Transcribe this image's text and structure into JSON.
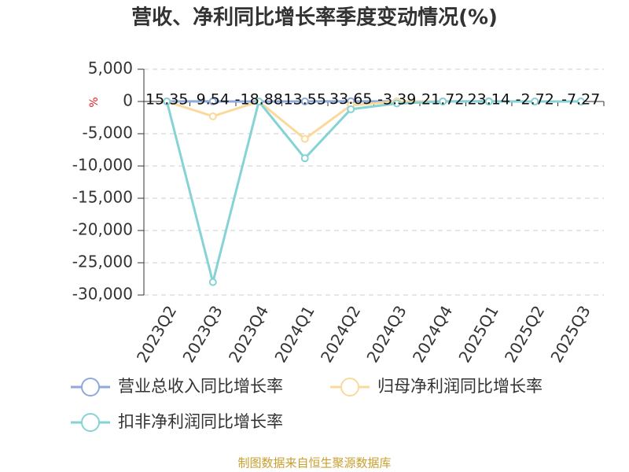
{
  "chart_data": {
    "type": "line",
    "title": "营收、净利同比增长率季度变动情况(%)",
    "y_unit": "%",
    "source": "制图数据来自恒生聚源数据库",
    "categories": [
      "2023Q2",
      "2023Q3",
      "2023Q4",
      "2024Q1",
      "2024Q2",
      "2024Q3",
      "2024Q4",
      "2025Q1",
      "2025Q2",
      "2025Q3"
    ],
    "series": [
      {
        "name": "营业总收入同比增长率",
        "color": "#8eaadb",
        "values": [
          15.35,
          9.54,
          -18.88,
          13.55,
          33.65,
          -3.39,
          21.72,
          23.14,
          -2.72,
          -7.27
        ],
        "labels": true
      },
      {
        "name": "归母净利润同比增长率",
        "color": "#fbd99b",
        "values": [
          0,
          -2300,
          0,
          -5800,
          -600,
          0,
          0,
          0,
          0,
          0
        ]
      },
      {
        "name": "扣非净利润同比增长率",
        "color": "#86d3d6",
        "values": [
          0,
          -28000,
          0,
          -8800,
          -1200,
          -300,
          0,
          0,
          0,
          0
        ]
      }
    ],
    "ylim": [
      -30000,
      5000
    ],
    "yticks": [
      {
        "value": -30000,
        "label": "-30,000"
      },
      {
        "value": -25000,
        "label": "-25,000"
      },
      {
        "value": -20000,
        "label": "-20,000"
      },
      {
        "value": -15000,
        "label": "-15,000"
      },
      {
        "value": -10000,
        "label": "-10,000"
      },
      {
        "value": -5000,
        "label": "-5,000"
      },
      0,
      {
        "value": 5000,
        "label": "5,000"
      }
    ],
    "grid": true
  }
}
